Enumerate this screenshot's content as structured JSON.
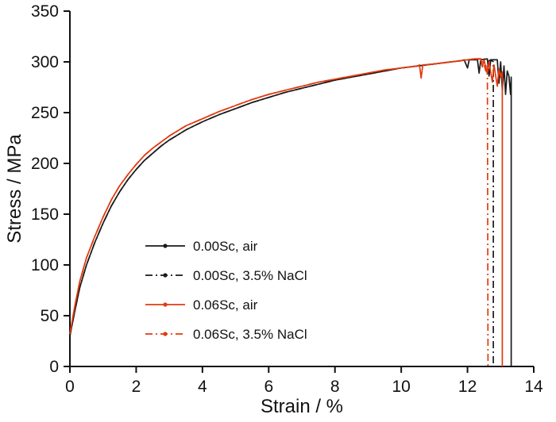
{
  "chart_data": {
    "type": "line",
    "title": "",
    "xlabel": "Strain / %",
    "ylabel": "Stress / MPa",
    "xlim": [
      0,
      14
    ],
    "ylim": [
      0,
      350
    ],
    "xticks": [
      0,
      2,
      4,
      6,
      8,
      10,
      12,
      14
    ],
    "yticks": [
      0,
      50,
      100,
      150,
      200,
      250,
      300,
      350
    ],
    "grid": false,
    "legend_position": "inside-lower-left",
    "colors": {
      "black": "#1a1a1a",
      "red": "#e23a0e"
    },
    "series": [
      {
        "name": "0.00Sc, air",
        "color": "#1a1a1a",
        "style": "solid",
        "points": [
          [
            0,
            30
          ],
          [
            0.15,
            55
          ],
          [
            0.3,
            78
          ],
          [
            0.5,
            100
          ],
          [
            0.75,
            122
          ],
          [
            1,
            141
          ],
          [
            1.25,
            158
          ],
          [
            1.5,
            172
          ],
          [
            1.75,
            184
          ],
          [
            2,
            194
          ],
          [
            2.25,
            203
          ],
          [
            2.5,
            210
          ],
          [
            2.75,
            217
          ],
          [
            3,
            223
          ],
          [
            3.5,
            233
          ],
          [
            4,
            241
          ],
          [
            4.5,
            248
          ],
          [
            5,
            254
          ],
          [
            5.5,
            260
          ],
          [
            6,
            265
          ],
          [
            6.5,
            270
          ],
          [
            7,
            274
          ],
          [
            7.5,
            278
          ],
          [
            8,
            282
          ],
          [
            8.5,
            285
          ],
          [
            9,
            288
          ],
          [
            9.5,
            291
          ],
          [
            10,
            294
          ],
          [
            10.5,
            296
          ],
          [
            11,
            298
          ],
          [
            11.5,
            300
          ],
          [
            11.8,
            301
          ],
          [
            11.9,
            302
          ],
          [
            12,
            294
          ],
          [
            12.05,
            302
          ],
          [
            12.3,
            302
          ],
          [
            12.35,
            289
          ],
          [
            12.4,
            302
          ],
          [
            12.6,
            303
          ],
          [
            12.65,
            286
          ],
          [
            12.7,
            302
          ],
          [
            12.9,
            302
          ],
          [
            12.95,
            279
          ],
          [
            13,
            300
          ],
          [
            13.05,
            272
          ],
          [
            13.1,
            296
          ],
          [
            13.15,
            268
          ],
          [
            13.2,
            291
          ],
          [
            13.25,
            286
          ],
          [
            13.3,
            268
          ],
          [
            13.32,
            285
          ],
          [
            13.32,
            0
          ]
        ]
      },
      {
        "name": "0.00Sc, 3.5% NaCl",
        "color": "#1a1a1a",
        "style": "dashdot",
        "points": [
          [
            0,
            30
          ],
          [
            0.15,
            55
          ],
          [
            0.3,
            78
          ],
          [
            0.5,
            100
          ],
          [
            0.75,
            122
          ],
          [
            1,
            141
          ],
          [
            1.25,
            158
          ],
          [
            1.5,
            172
          ],
          [
            1.75,
            184
          ],
          [
            2,
            194
          ],
          [
            2.25,
            203
          ],
          [
            2.5,
            210
          ],
          [
            2.75,
            217
          ],
          [
            3,
            223
          ],
          [
            3.5,
            233
          ],
          [
            4,
            241
          ],
          [
            4.5,
            248
          ],
          [
            5,
            254
          ],
          [
            5.5,
            260
          ],
          [
            6,
            265
          ],
          [
            6.5,
            270
          ],
          [
            7,
            274
          ],
          [
            7.5,
            278
          ],
          [
            8,
            282
          ],
          [
            8.5,
            285
          ],
          [
            9,
            288
          ],
          [
            9.5,
            291
          ],
          [
            10,
            294
          ],
          [
            10.5,
            296
          ],
          [
            11,
            298
          ],
          [
            11.5,
            300
          ],
          [
            12,
            302
          ],
          [
            12.3,
            303
          ],
          [
            12.5,
            303
          ],
          [
            12.6,
            300
          ],
          [
            12.7,
            302
          ],
          [
            12.78,
            300
          ],
          [
            12.78,
            0
          ]
        ]
      },
      {
        "name": "0.06Sc, air",
        "color": "#e23a0e",
        "style": "solid",
        "points": [
          [
            0,
            32
          ],
          [
            0.15,
            60
          ],
          [
            0.3,
            84
          ],
          [
            0.5,
            107
          ],
          [
            0.75,
            128
          ],
          [
            1,
            147
          ],
          [
            1.25,
            164
          ],
          [
            1.5,
            178
          ],
          [
            1.75,
            189
          ],
          [
            2,
            199
          ],
          [
            2.25,
            208
          ],
          [
            2.5,
            215
          ],
          [
            2.75,
            221
          ],
          [
            3,
            227
          ],
          [
            3.5,
            237
          ],
          [
            4,
            244
          ],
          [
            4.5,
            251
          ],
          [
            5,
            257
          ],
          [
            5.5,
            263
          ],
          [
            6,
            268
          ],
          [
            6.5,
            272
          ],
          [
            7,
            276
          ],
          [
            7.5,
            280
          ],
          [
            8,
            283
          ],
          [
            8.5,
            286
          ],
          [
            9,
            289
          ],
          [
            9.5,
            292
          ],
          [
            10,
            294
          ],
          [
            10.5,
            296
          ],
          [
            10.55,
            297
          ],
          [
            10.6,
            284
          ],
          [
            10.65,
            297
          ],
          [
            11,
            298
          ],
          [
            11.5,
            300
          ],
          [
            12,
            302
          ],
          [
            12.2,
            303
          ],
          [
            12.4,
            303
          ],
          [
            12.45,
            295
          ],
          [
            12.5,
            302
          ],
          [
            12.6,
            288
          ],
          [
            12.65,
            300
          ],
          [
            12.75,
            280
          ],
          [
            12.8,
            297
          ],
          [
            12.9,
            276
          ],
          [
            12.95,
            293
          ],
          [
            13,
            285
          ],
          [
            13.05,
            290
          ],
          [
            13.05,
            0
          ]
        ]
      },
      {
        "name": "0.06Sc, 3.5% NaCl",
        "color": "#e23a0e",
        "style": "dashdot",
        "points": [
          [
            0,
            32
          ],
          [
            0.15,
            60
          ],
          [
            0.3,
            84
          ],
          [
            0.5,
            107
          ],
          [
            0.75,
            128
          ],
          [
            1,
            147
          ],
          [
            1.25,
            164
          ],
          [
            1.5,
            178
          ],
          [
            1.75,
            189
          ],
          [
            2,
            199
          ],
          [
            2.25,
            208
          ],
          [
            2.5,
            215
          ],
          [
            2.75,
            221
          ],
          [
            3,
            227
          ],
          [
            3.5,
            237
          ],
          [
            4,
            244
          ],
          [
            4.5,
            251
          ],
          [
            5,
            257
          ],
          [
            5.5,
            263
          ],
          [
            6,
            268
          ],
          [
            6.5,
            272
          ],
          [
            7,
            276
          ],
          [
            7.5,
            280
          ],
          [
            8,
            283
          ],
          [
            8.5,
            286
          ],
          [
            9,
            289
          ],
          [
            9.5,
            292
          ],
          [
            10,
            294
          ],
          [
            10.5,
            296
          ],
          [
            11,
            298
          ],
          [
            11.5,
            300
          ],
          [
            12,
            302
          ],
          [
            12.25,
            303
          ],
          [
            12.4,
            302
          ],
          [
            12.5,
            298
          ],
          [
            12.55,
            291
          ],
          [
            12.6,
            297
          ],
          [
            12.62,
            0
          ]
        ]
      }
    ]
  }
}
